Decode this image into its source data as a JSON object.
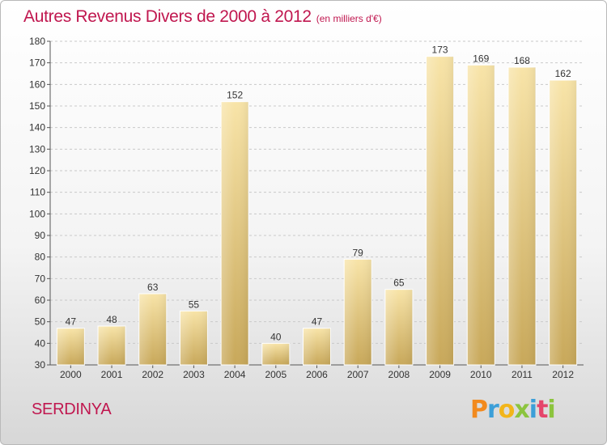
{
  "title": "Autres Revenus Divers de 2000 à 2012",
  "subtitle": "(en milliers d'€)",
  "commune": "SERDINYA",
  "logo": {
    "letters": [
      "P",
      "r",
      "o",
      "x",
      "i",
      "t",
      "i"
    ],
    "colors": [
      "#f28a1e",
      "#3c9fd8",
      "#f2b51a",
      "#8cc43e",
      "#3c9fd8",
      "#e5456b",
      "#8cc43e"
    ]
  },
  "colors": {
    "title": "#c0174f",
    "bar_light": "#f7e3a6",
    "bar_dark": "#c9aa5c"
  },
  "chart_data": {
    "type": "bar",
    "categories": [
      "2000",
      "2001",
      "2002",
      "2003",
      "2004",
      "2005",
      "2006",
      "2007",
      "2008",
      "2009",
      "2010",
      "2011",
      "2012"
    ],
    "values": [
      47,
      48,
      63,
      55,
      152,
      40,
      47,
      79,
      65,
      173,
      169,
      168,
      162
    ],
    "data_labels": [
      "47",
      "48",
      "63",
      "55",
      "152",
      "40",
      "47",
      "79",
      "65",
      "173",
      "169",
      "168",
      "162"
    ],
    "yticks": [
      "30",
      "40",
      "50",
      "60",
      "70",
      "80",
      "90",
      "100",
      "110",
      "120",
      "130",
      "140",
      "150",
      "160",
      "170",
      "180"
    ],
    "ylim": [
      30,
      180
    ],
    "grid": true,
    "xlabel": "",
    "ylabel": ""
  }
}
